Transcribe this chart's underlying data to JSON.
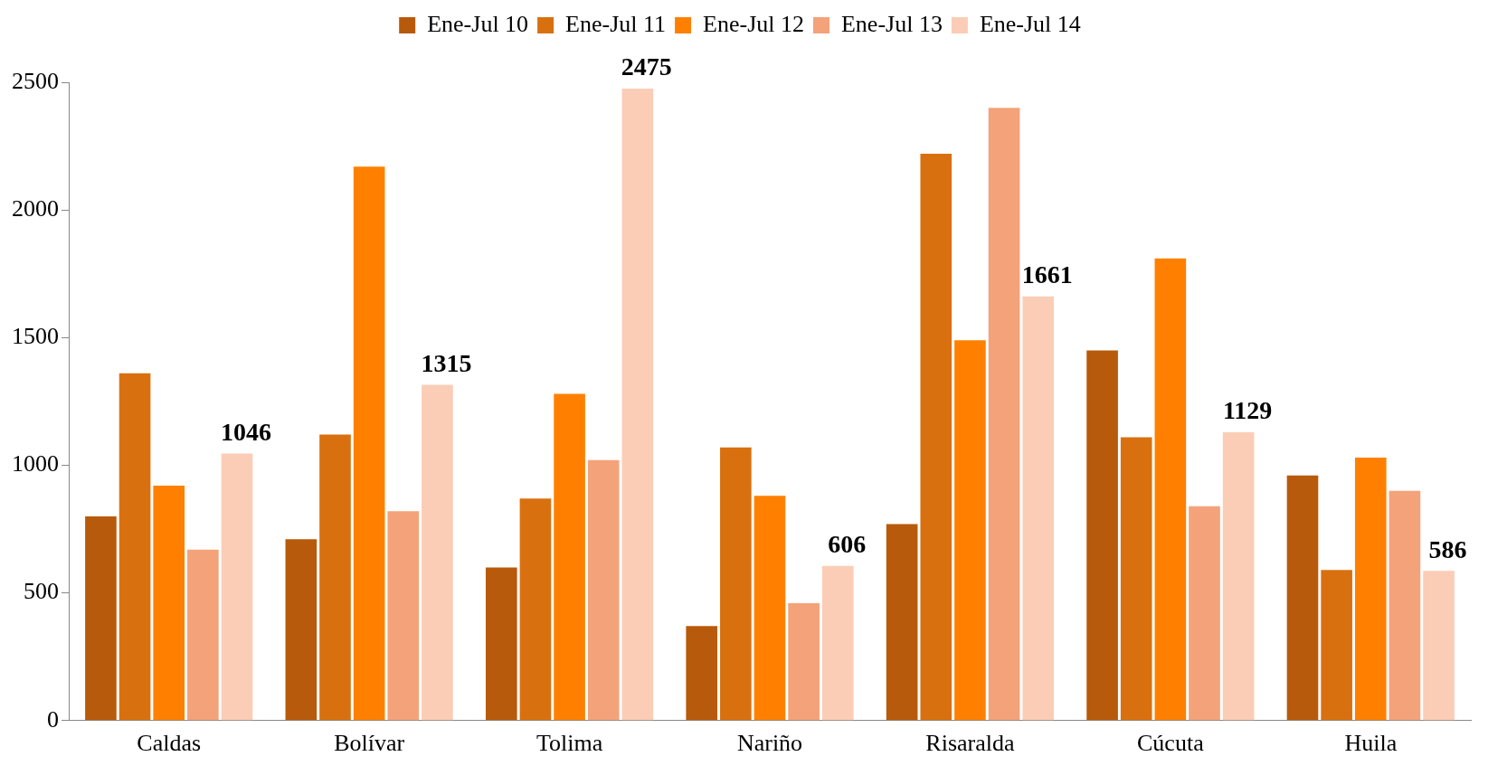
{
  "chart_data": {
    "type": "bar",
    "categories": [
      "Caldas",
      "Bolívar",
      "Tolima",
      "Nariño",
      "Risaralda",
      "Cúcuta",
      "Huila"
    ],
    "series": [
      {
        "name": "Ene-Jul 10",
        "color": "#b85a0b",
        "values": [
          800,
          710,
          600,
          370,
          770,
          1450,
          960
        ]
      },
      {
        "name": "Ene-Jul 11",
        "color": "#d9700f",
        "values": [
          1360,
          1120,
          870,
          1070,
          2220,
          1110,
          590
        ]
      },
      {
        "name": "Ene-Jul 12",
        "color": "#ff8000",
        "values": [
          920,
          2170,
          1280,
          880,
          1490,
          1810,
          1030
        ]
      },
      {
        "name": "Ene-Jul 13",
        "color": "#f4a27a",
        "values": [
          670,
          820,
          1020,
          460,
          2400,
          840,
          900
        ]
      },
      {
        "name": "Ene-Jul 14",
        "color": "#fbcdb6",
        "values": [
          1046,
          1315,
          2475,
          606,
          1661,
          1129,
          586
        ],
        "value_labels": [
          "1046",
          "1315",
          "2475",
          "606",
          "1661",
          "1129",
          "586"
        ]
      }
    ],
    "ylim": [
      0,
      2500
    ],
    "yticks": [
      0,
      500,
      1000,
      1500,
      2000,
      2500
    ],
    "grid": false,
    "legend": "top"
  }
}
